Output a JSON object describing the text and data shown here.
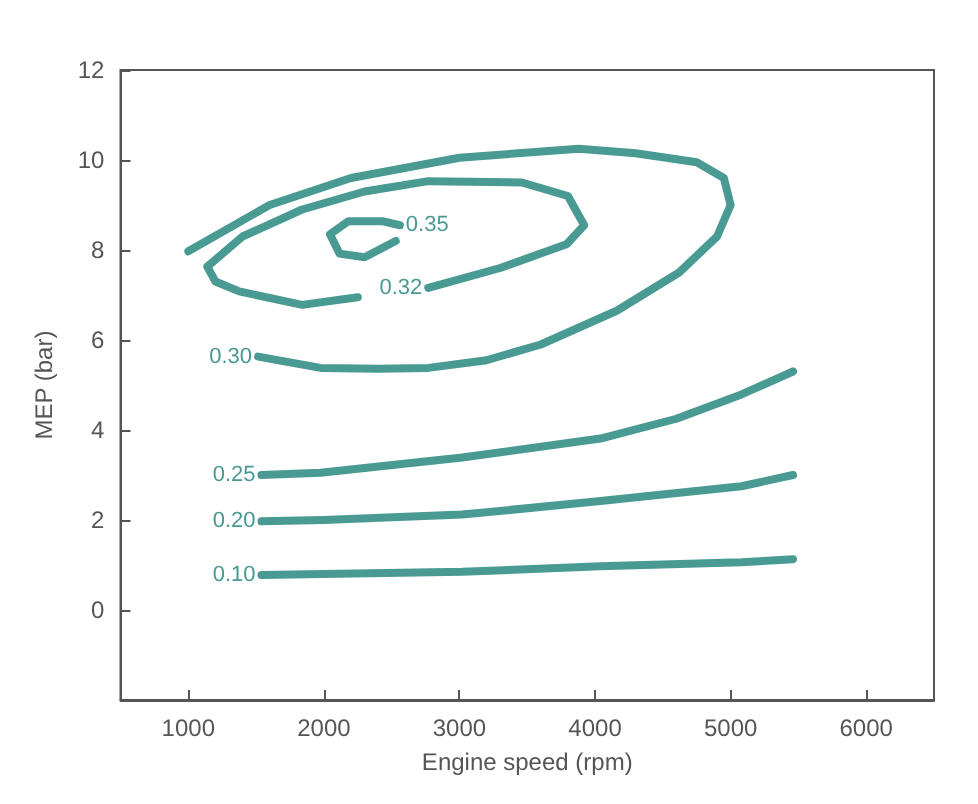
{
  "chart_data": {
    "type": "line",
    "xlabel": "Engine speed (rpm)",
    "ylabel": "MEP (bar)",
    "xlim": [
      500,
      6500
    ],
    "xticks": [
      1000,
      2000,
      3000,
      4000,
      5000,
      6000
    ],
    "ylim": [
      -2,
      12
    ],
    "yticks": [
      0,
      2,
      4,
      6,
      8,
      10,
      12
    ],
    "grid": false,
    "legend": false,
    "marker": "none",
    "line_style": "solid",
    "series": [
      {
        "name": "0.35",
        "color": "#4a9a94",
        "x": [
          2560,
          2430,
          2180,
          2045,
          2115,
          2300,
          2530
        ],
        "values": [
          8.55,
          8.64,
          8.64,
          8.35,
          7.92,
          7.84,
          8.2
        ]
      },
      {
        "name": "0.32",
        "color": "#4a9a94",
        "x": [
          2770,
          3300,
          3790,
          3920,
          3800,
          3460,
          2770,
          2300,
          1840,
          1400,
          1140,
          1200,
          1375,
          1840,
          2250
        ],
        "values": [
          7.16,
          7.6,
          8.13,
          8.55,
          9.2,
          9.5,
          9.53,
          9.3,
          8.9,
          8.3,
          7.63,
          7.3,
          7.08,
          6.78,
          6.95
        ]
      },
      {
        "name": "0.30",
        "color": "#4a9a94",
        "x": [
          1515,
          1975,
          2400,
          2770,
          3200,
          3600,
          4160,
          4620,
          4900,
          5000,
          4950,
          4750,
          4300,
          3880,
          3000,
          2200,
          1600,
          1000
        ],
        "values": [
          5.63,
          5.38,
          5.36,
          5.38,
          5.55,
          5.9,
          6.65,
          7.5,
          8.3,
          9.0,
          9.6,
          9.95,
          10.15,
          10.25,
          10.05,
          9.6,
          9.0,
          7.97
        ]
      },
      {
        "name": "0.25",
        "color": "#4a9a94",
        "x": [
          1540,
          1975,
          3020,
          4040,
          4600,
          5080,
          5460
        ],
        "values": [
          3.0,
          3.05,
          3.39,
          3.81,
          4.25,
          4.79,
          5.3
        ]
      },
      {
        "name": "0.20",
        "color": "#4a9a94",
        "x": [
          1540,
          2000,
          3020,
          4040,
          5080,
          5460
        ],
        "values": [
          1.97,
          2.0,
          2.12,
          2.42,
          2.75,
          3.0
        ]
      },
      {
        "name": "0.10",
        "color": "#4a9a94",
        "x": [
          1540,
          2000,
          3020,
          4040,
          5080,
          5460
        ],
        "values": [
          0.78,
          0.8,
          0.85,
          0.97,
          1.06,
          1.13
        ]
      }
    ]
  }
}
